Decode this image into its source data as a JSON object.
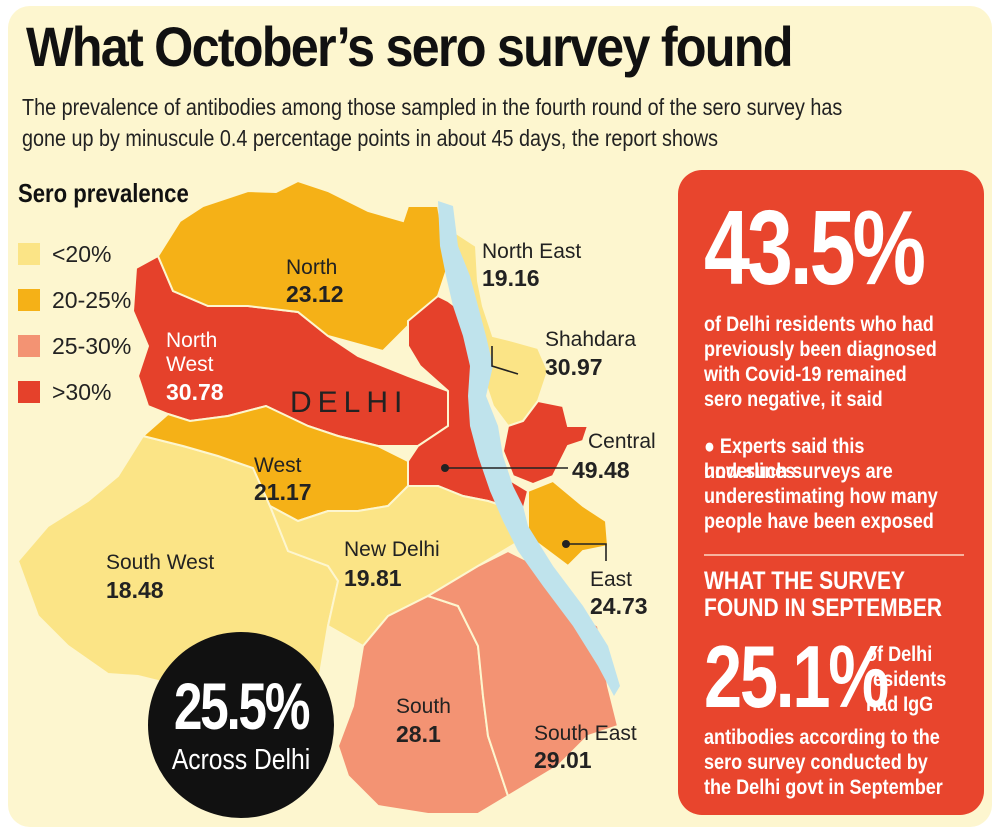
{
  "title": "What October’s sero survey found",
  "subtitle": "The prevalence of antibodies among those sampled in the fourth round of the sero survey has gone up by minuscule 0.4 percentage points in about 45 days, the report shows",
  "legend": {
    "title": "Sero prevalence",
    "items": [
      {
        "label": "<20%",
        "color": "#fbe486"
      },
      {
        "label": "20-25%",
        "color": "#f5b117"
      },
      {
        "label": "25-30%",
        "color": "#f39373"
      },
      {
        "label": ">30%",
        "color": "#e5412b"
      }
    ]
  },
  "map": {
    "city_label": "DELHI",
    "river_color": "#bfe3ec",
    "districts": [
      {
        "name": "North",
        "value": "23.12",
        "color": "#f5b117"
      },
      {
        "name": "North West",
        "name_lines": [
          "North",
          "West"
        ],
        "value": "30.78",
        "color": "#e5412b"
      },
      {
        "name": "North East",
        "value": "19.16",
        "color": "#fbe486"
      },
      {
        "name": "Shahdara",
        "value": "30.97",
        "color": "#e5412b"
      },
      {
        "name": "Central",
        "value": "49.48",
        "color": "#e5412b"
      },
      {
        "name": "West",
        "value": "21.17",
        "color": "#f5b117"
      },
      {
        "name": "East",
        "value": "24.73",
        "color": "#f5b117"
      },
      {
        "name": "South West",
        "value": "18.48",
        "color": "#fbe486"
      },
      {
        "name": "New Delhi",
        "value": "19.81",
        "color": "#fbe486"
      },
      {
        "name": "South",
        "value": "28.1",
        "color": "#f39373"
      },
      {
        "name": "South East",
        "value": "29.01",
        "color": "#f39373"
      }
    ]
  },
  "circle": {
    "value": "25.5%",
    "label": "Across Delhi"
  },
  "panel": {
    "big_value": "43.5%",
    "big_text_lines": [
      "of Delhi residents who had",
      "previously been diagnosed",
      "with Covid-19 remained",
      "sero negative, it said"
    ],
    "bullet_lines": [
      "●  Experts said this underlines",
      "how such surveys are",
      "underestimating how many",
      "people have been exposed"
    ],
    "sept_title_lines": [
      "WHAT THE SURVEY",
      "FOUND IN SEPTEMBER"
    ],
    "sept_value": "25.1%",
    "sept_side_lines": [
      "of Delhi",
      "residents",
      "had IgG"
    ],
    "sept_bottom_lines": [
      "antibodies according to the",
      "sero survey conducted by",
      "the Delhi govt in September"
    ]
  }
}
